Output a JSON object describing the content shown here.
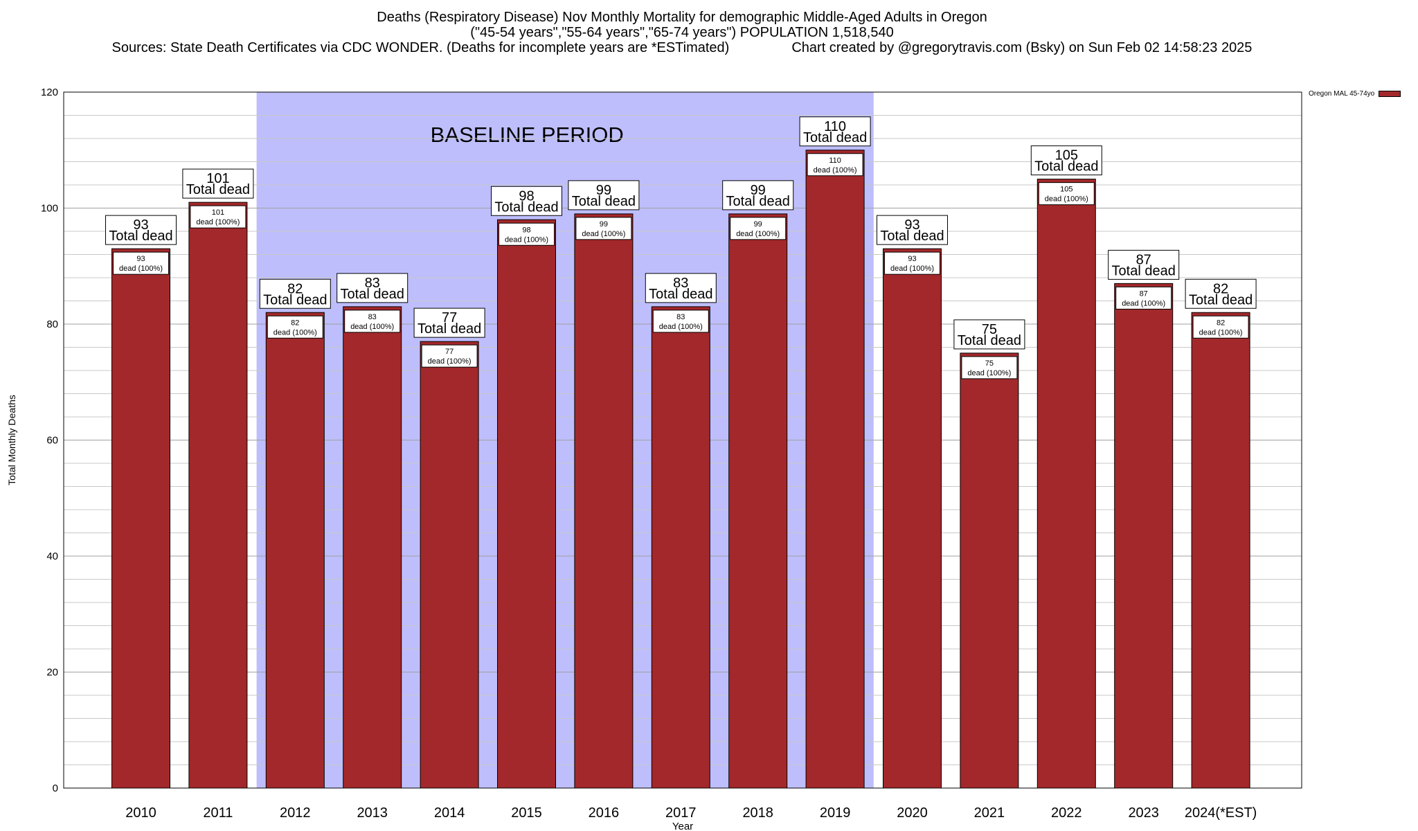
{
  "header": {
    "title_line1": "Deaths (Respiratory Disease) Nov Monthly Mortality for demographic Middle-Aged Adults in Oregon",
    "title_line2": "(\"45-54 years\",\"55-64 years\",\"65-74 years\") POPULATION 1,518,540",
    "sources": "Sources: State Death Certificates via CDC WONDER. (Deaths for incomplete years are *ESTimated)",
    "credit": "Chart created by @gregorytravis.com (Bsky) on Sun Feb 02 14:58:23 2025"
  },
  "legend": {
    "label": "Oregon MAL 45-74yo"
  },
  "colors": {
    "bar": "#a3282b",
    "baseline": "#bebefd",
    "grid": "#c8c8c8"
  },
  "chart_data": {
    "type": "bar",
    "categories": [
      "2010",
      "2011",
      "2012",
      "2013",
      "2014",
      "2015",
      "2016",
      "2017",
      "2018",
      "2019",
      "2020",
      "2021",
      "2022",
      "2023",
      "2024(*EST)"
    ],
    "series": [
      {
        "name": "Oregon MAL 45-74yo",
        "values": [
          93,
          101,
          82,
          83,
          77,
          98,
          99,
          83,
          99,
          110,
          93,
          75,
          105,
          87,
          82
        ]
      }
    ],
    "xlabel": "Year",
    "ylabel": "Total Monthly Deaths",
    "ylim": [
      0,
      120
    ],
    "yticks": [
      0,
      20,
      40,
      60,
      80,
      100,
      120
    ],
    "grid": true,
    "legend_position": "top-right",
    "baseline_period": {
      "label": "BASELINE PERIOD",
      "from": "2012",
      "to": "2019"
    },
    "top_label_suffix": "Total dead",
    "inner_label_suffix": "dead (100%)"
  }
}
